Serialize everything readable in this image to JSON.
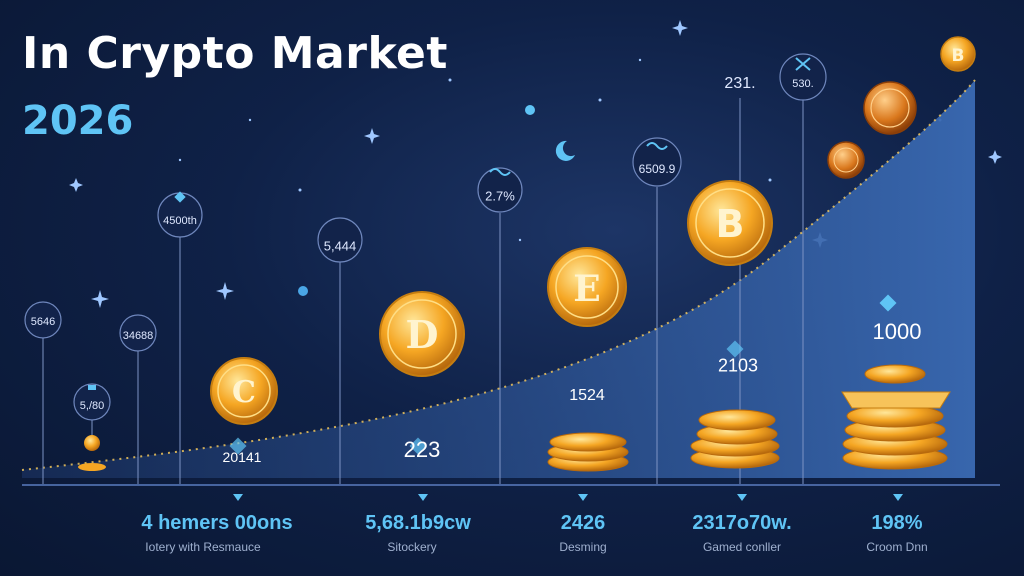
{
  "header": {
    "title": "In Crypto Market",
    "year": "2026"
  },
  "pins": [
    {
      "label": "5646"
    },
    {
      "label": "5,/80"
    },
    {
      "label": "34688"
    },
    {
      "label": "4500th"
    },
    {
      "label": "5,444"
    },
    {
      "label": "2.7%"
    },
    {
      "label": "6509.9"
    },
    {
      "label": "231."
    },
    {
      "label": "530."
    }
  ],
  "coin_letters": {
    "c": "C",
    "d": "D",
    "e": "E",
    "b": "B"
  },
  "mid_labels": [
    {
      "text": "20141"
    },
    {
      "text": "223"
    },
    {
      "text": "1524"
    },
    {
      "text": "2103"
    },
    {
      "text": "1000"
    }
  ],
  "bottom": [
    {
      "value": "4 hemers 00ons",
      "caption": "Iotery with Resmauce"
    },
    {
      "value": "5,68.1b9cw",
      "caption": "Sitockery"
    },
    {
      "value": "2426",
      "caption": "Desming"
    },
    {
      "value": "2317o70w.",
      "caption": "Gamed conller"
    },
    {
      "value": "198%",
      "caption": "Croom Dnn"
    }
  ],
  "colors": {
    "accent": "#5fc4f5",
    "background": "#0f2147",
    "coin": "#f5a623",
    "curve": "#2b4f8c"
  }
}
